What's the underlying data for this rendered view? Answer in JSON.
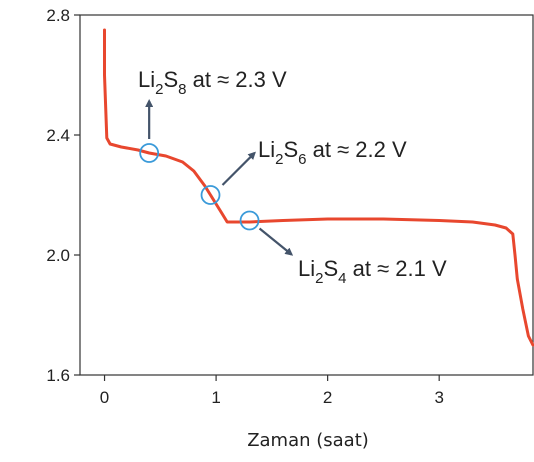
{
  "chart_data": {
    "type": "line",
    "xlabel": "Zaman (saat)",
    "ylabel": "",
    "xlim": [
      -0.22,
      3.85
    ],
    "ylim": [
      1.6,
      2.8
    ],
    "x_ticks": [
      0,
      1,
      2,
      3
    ],
    "x_tick_labels": [
      "0",
      "1",
      "2",
      "3"
    ],
    "y_ticks": [
      1.6,
      2.0,
      2.4,
      2.8
    ],
    "y_tick_labels": [
      "1.6",
      "2.0",
      "2.4",
      "2.8"
    ],
    "grid": false,
    "colors": {
      "line": "#e8472e",
      "marker": "#3a9ad9",
      "arrow": "#44546a",
      "axis": "#333333"
    },
    "series": [
      {
        "x": [
          0.0,
          0.0,
          0.02,
          0.05,
          0.15,
          0.3,
          0.4,
          0.55,
          0.7,
          0.8,
          0.9,
          0.95,
          1.0,
          1.05,
          1.1,
          1.15,
          1.3,
          1.6,
          2.0,
          2.5,
          3.0,
          3.3,
          3.5,
          3.6,
          3.66,
          3.68,
          3.7,
          3.75,
          3.8,
          3.84
        ],
        "y": [
          2.75,
          2.6,
          2.39,
          2.37,
          2.36,
          2.35,
          2.34,
          2.33,
          2.31,
          2.28,
          2.23,
          2.2,
          2.17,
          2.14,
          2.11,
          2.11,
          2.11,
          2.115,
          2.12,
          2.12,
          2.115,
          2.11,
          2.1,
          2.09,
          2.07,
          2.0,
          1.92,
          1.82,
          1.73,
          1.7
        ]
      }
    ],
    "markers": [
      {
        "x": 0.4,
        "y": 2.34
      },
      {
        "x": 0.95,
        "y": 2.2
      },
      {
        "x": 1.3,
        "y": 2.115
      }
    ],
    "annotations": [
      {
        "main": "Li",
        "sub1": "2",
        "mid": "S",
        "sub2": "8",
        "rest": " at ≈ 2.3 V"
      },
      {
        "main": "Li",
        "sub1": "2",
        "mid": "S",
        "sub2": "6",
        "rest": " at ≈ 2.2 V"
      },
      {
        "main": "Li",
        "sub1": "2",
        "mid": "S",
        "sub2": "4",
        "rest": " at ≈ 2.1 V"
      }
    ]
  }
}
